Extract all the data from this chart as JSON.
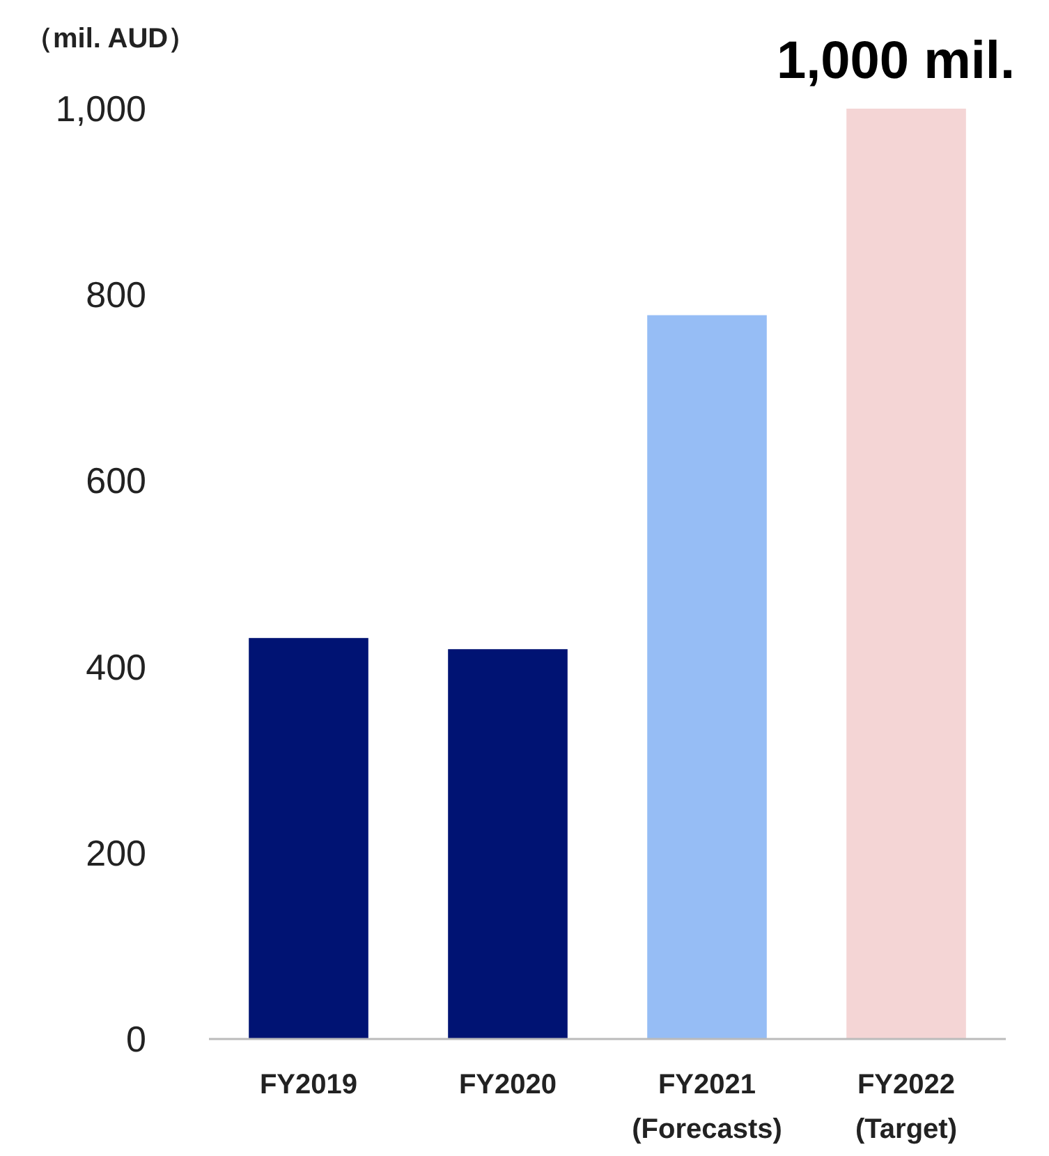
{
  "chart_data": {
    "type": "bar",
    "ylabel": "（mil. AUD）",
    "categories": [
      "FY2019",
      "FY2020",
      "FY2021\n(Forecasts)",
      "FY2022\n(Target)"
    ],
    "values": [
      431,
      419,
      778,
      1000
    ],
    "colors": [
      "#001373",
      "#001373",
      "#96bdf5",
      "#f4d5d5"
    ],
    "ylim": [
      0,
      1000
    ],
    "yticks": [
      0,
      200,
      400,
      600,
      800,
      {
        "value": 1000,
        "label": "1,000"
      }
    ],
    "annotations": [
      {
        "text": "1,000 mil.",
        "x": "FY2022\n(Target)",
        "y": 1000
      }
    ]
  }
}
